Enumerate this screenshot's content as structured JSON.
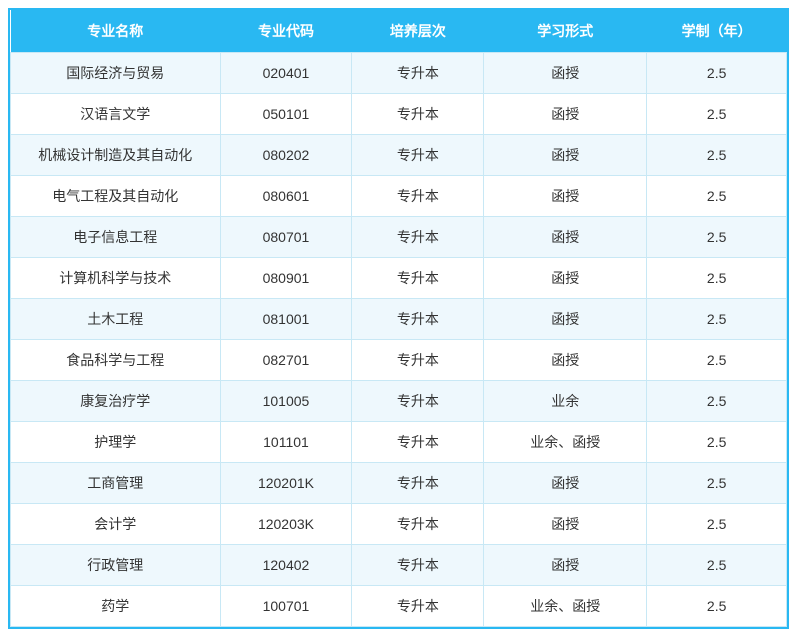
{
  "table": {
    "header_bg": "#29b8f2",
    "header_color": "#ffffff",
    "border_color": "#29b8f2",
    "cell_border_color": "#c8e8f5",
    "row_odd_bg": "#eef8fd",
    "row_even_bg": "#ffffff",
    "cell_color": "#333333",
    "header_fontsize": 14,
    "cell_fontsize": 14,
    "columns": [
      {
        "key": "name",
        "label": "专业名称",
        "width": "27%"
      },
      {
        "key": "code",
        "label": "专业代码",
        "width": "17%"
      },
      {
        "key": "level",
        "label": "培养层次",
        "width": "17%"
      },
      {
        "key": "form",
        "label": "学习形式",
        "width": "21%"
      },
      {
        "key": "duration",
        "label": "学制（年）",
        "width": "18%"
      }
    ],
    "rows": [
      {
        "name": "国际经济与贸易",
        "code": "020401",
        "level": "专升本",
        "form": "函授",
        "duration": "2.5"
      },
      {
        "name": "汉语言文学",
        "code": "050101",
        "level": "专升本",
        "form": "函授",
        "duration": "2.5"
      },
      {
        "name": "机械设计制造及其自动化",
        "code": "080202",
        "level": "专升本",
        "form": "函授",
        "duration": "2.5"
      },
      {
        "name": "电气工程及其自动化",
        "code": "080601",
        "level": "专升本",
        "form": "函授",
        "duration": "2.5"
      },
      {
        "name": "电子信息工程",
        "code": "080701",
        "level": "专升本",
        "form": "函授",
        "duration": "2.5"
      },
      {
        "name": "计算机科学与技术",
        "code": "080901",
        "level": "专升本",
        "form": "函授",
        "duration": "2.5"
      },
      {
        "name": "土木工程",
        "code": "081001",
        "level": "专升本",
        "form": "函授",
        "duration": "2.5"
      },
      {
        "name": "食品科学与工程",
        "code": "082701",
        "level": "专升本",
        "form": "函授",
        "duration": "2.5"
      },
      {
        "name": "康复治疗学",
        "code": "101005",
        "level": "专升本",
        "form": "业余",
        "duration": "2.5"
      },
      {
        "name": "护理学",
        "code": "101101",
        "level": "专升本",
        "form": "业余、函授",
        "duration": "2.5"
      },
      {
        "name": "工商管理",
        "code": "120201K",
        "level": "专升本",
        "form": "函授",
        "duration": "2.5"
      },
      {
        "name": "会计学",
        "code": "120203K",
        "level": "专升本",
        "form": "函授",
        "duration": "2.5"
      },
      {
        "name": "行政管理",
        "code": "120402",
        "level": "专升本",
        "form": "函授",
        "duration": "2.5"
      },
      {
        "name": "药学",
        "code": "100701",
        "level": "专升本",
        "form": "业余、函授",
        "duration": "2.5"
      }
    ]
  }
}
